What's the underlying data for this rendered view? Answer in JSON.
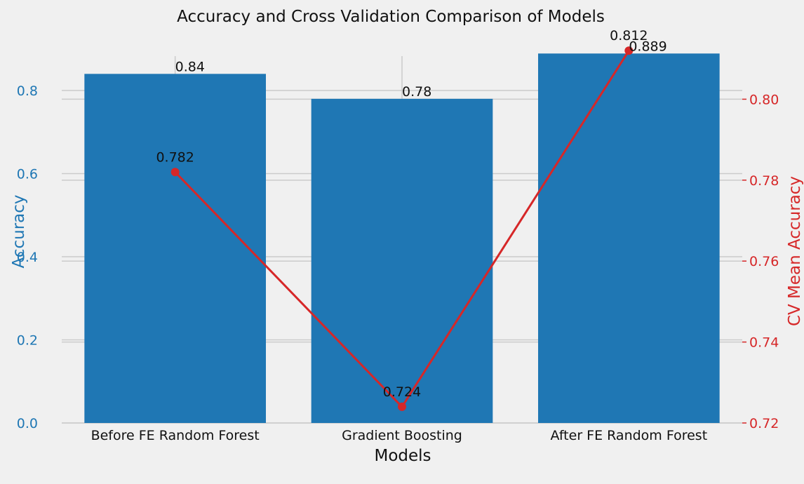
{
  "chart_data": {
    "type": "bar",
    "title": "Accuracy and Cross Validation Comparison of Models",
    "xlabel": "Models",
    "ylabel": "Accuracy",
    "ylabel_right": "CV Mean Accuracy",
    "categories": [
      "Before FE Random Forest",
      "Gradient Boosting",
      "After FE Random Forest"
    ],
    "series": [
      {
        "axis": "left",
        "kind": "bar",
        "values": [
          0.84,
          0.78,
          0.889
        ],
        "value_labels": [
          "0.84",
          "0.78",
          "0.889"
        ],
        "color": "#1f77b4"
      },
      {
        "axis": "right",
        "kind": "line",
        "values": [
          0.782,
          0.724,
          0.812
        ],
        "value_labels": [
          "0.782",
          "0.724",
          "0.812"
        ],
        "color": "#d62728"
      }
    ],
    "ylim": [
      0,
      0.93
    ],
    "ylim_right": [
      0.72,
      0.8155
    ],
    "yticks": [
      "0.0",
      "0.2",
      "0.4",
      "0.6",
      "0.8"
    ],
    "yticks_right": [
      "0.72",
      "0.74",
      "0.76",
      "0.78",
      "0.80"
    ],
    "grid": true,
    "colors": {
      "left_axis": "#1f77b4",
      "right_axis": "#d62728",
      "background": "#f0f0f0"
    }
  }
}
